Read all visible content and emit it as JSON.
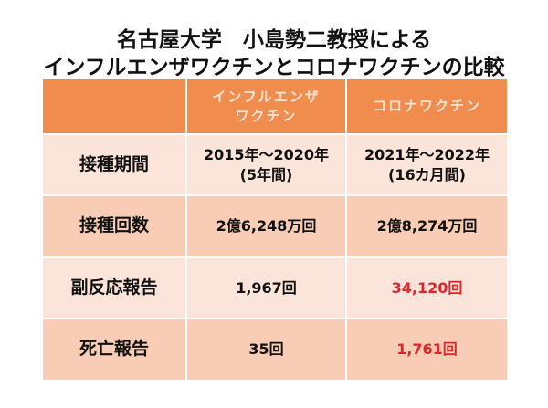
{
  "title": [
    "名古屋大学　小島勢二教授による",
    "インフルエンザワクチンとコロナワクチンの比較"
  ],
  "table": {
    "header": [
      null,
      [
        "インフルエンザ",
        "ワクチン"
      ],
      [
        "コロナワクチン"
      ]
    ],
    "rows": [
      [
        [
          "接種期間"
        ],
        [
          "2015年～2020年",
          "(5年間)"
        ],
        [
          "2021年～2022年",
          "(16カ月間)"
        ]
      ],
      [
        [
          "接種回数"
        ],
        [
          "2億6,248万回"
        ],
        [
          "2億8,274万回"
        ]
      ],
      [
        [
          "副反応報告"
        ],
        [
          "1,967回"
        ],
        [
          "34,120回"
        ]
      ],
      [
        [
          "死亡報告"
        ],
        [
          "35回"
        ],
        [
          "1,761回"
        ]
      ]
    ]
  }
}
